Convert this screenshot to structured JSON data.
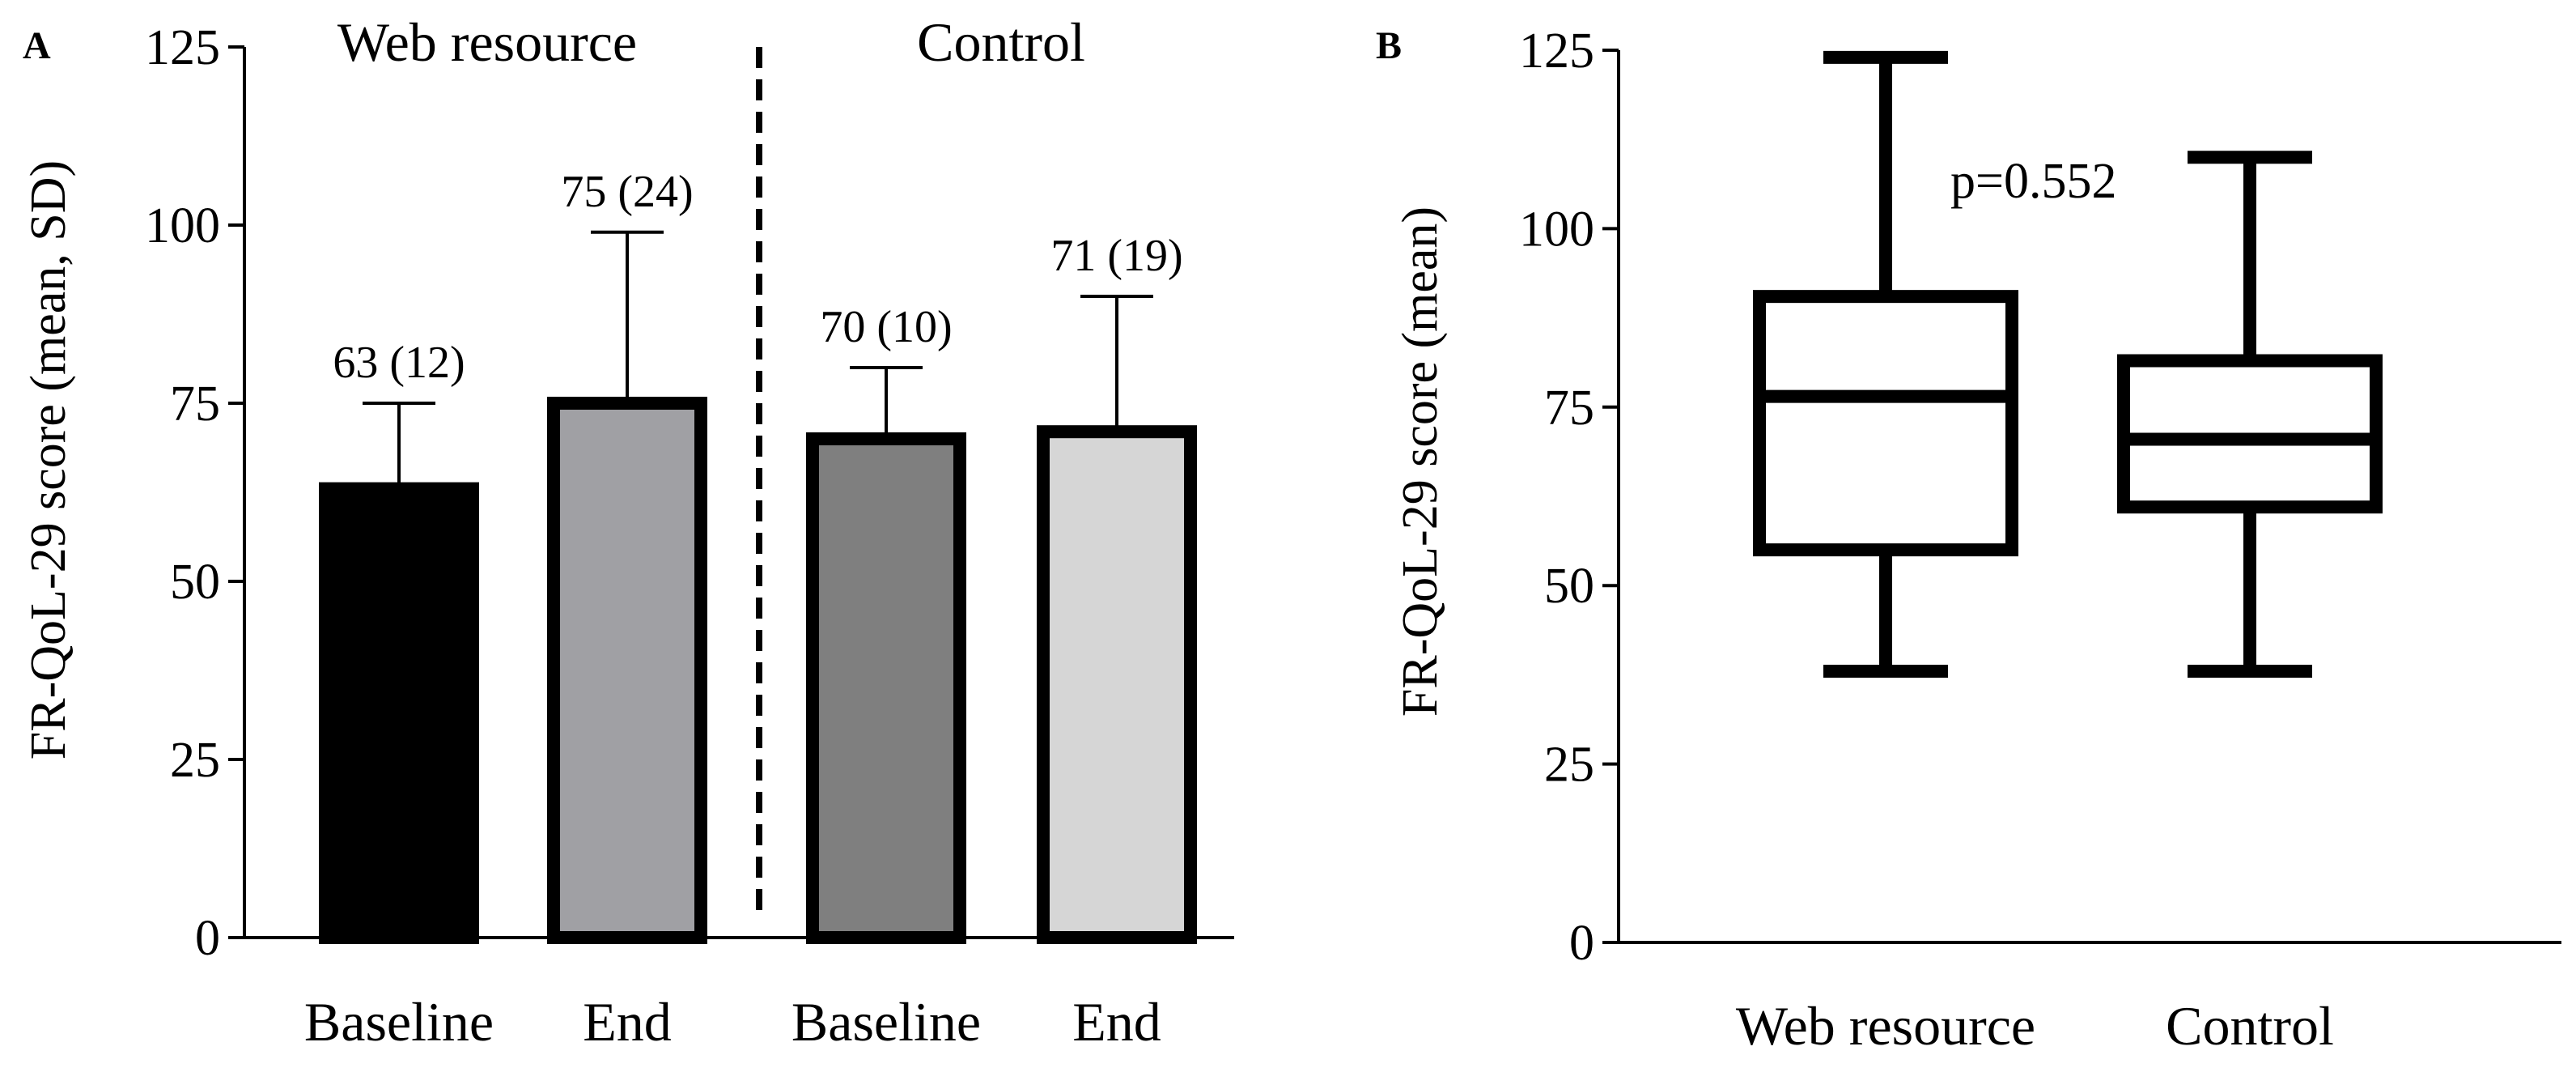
{
  "chart_data": [
    {
      "panel": "A",
      "type": "bar",
      "ylabel": "FR-QoL-29 score (mean, SD)",
      "ylim": [
        0,
        125
      ],
      "yticks": [
        0,
        25,
        50,
        75,
        100,
        125
      ],
      "groups": [
        {
          "name": "Web resource",
          "categories": [
            "Baseline",
            "End"
          ]
        },
        {
          "name": "Control",
          "categories": [
            "Baseline",
            "End"
          ]
        }
      ],
      "bars": [
        {
          "group": "Web resource",
          "category": "Baseline",
          "value": 63,
          "sd": 12,
          "label": "63 (12)",
          "color": "#000000"
        },
        {
          "group": "Web resource",
          "category": "End",
          "value": 75,
          "sd": 24,
          "label": "75 (24)",
          "color": "#a0a0a4"
        },
        {
          "group": "Control",
          "category": "Baseline",
          "value": 70,
          "sd": 10,
          "label": "70 (10)",
          "color": "#7f7f7f"
        },
        {
          "group": "Control",
          "category": "End",
          "value": 71,
          "sd": 19,
          "label": "71 (19)",
          "color": "#d6d6d6"
        }
      ]
    },
    {
      "panel": "B",
      "type": "box",
      "ylabel": "FR-QoL-29 score (mean)",
      "ylim": [
        0,
        125
      ],
      "yticks": [
        0,
        25,
        50,
        75,
        100,
        125
      ],
      "annotation": "p=0.552",
      "boxes": [
        {
          "name": "Web resource",
          "min": 38,
          "q1": 55,
          "median": 76.5,
          "q3": 90.5,
          "max": 124
        },
        {
          "name": "Control",
          "min": 38,
          "q1": 61,
          "median": 70.5,
          "q3": 81.5,
          "max": 110
        }
      ]
    }
  ]
}
